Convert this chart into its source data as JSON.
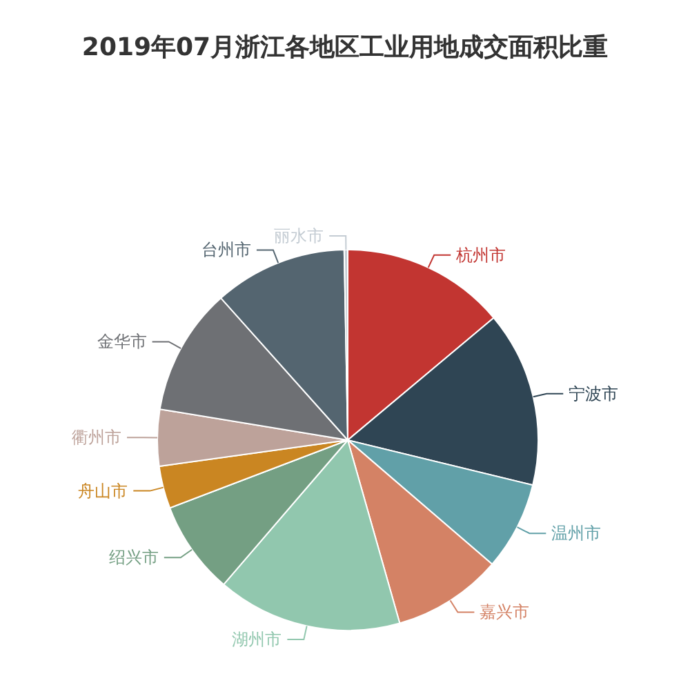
{
  "chart_data": {
    "type": "pie",
    "title": "2019年07月浙江各地区工业用地成交面积比重",
    "categories": [
      "杭州市",
      "宁波市",
      "温州市",
      "嘉兴市",
      "湖州市",
      "绍兴市",
      "舟山市",
      "衢州市",
      "金华市",
      "台州市",
      "丽水市"
    ],
    "values": [
      13.9,
      14.9,
      7.5,
      9.3,
      15.7,
      7.9,
      3.6,
      4.8,
      10.8,
      11.3,
      0.3
    ],
    "colors": [
      "#c23531",
      "#2f4554",
      "#61a0a8",
      "#d48265",
      "#91c7ae",
      "#749f83",
      "#ca8622",
      "#bda29a",
      "#6e7074",
      "#546570",
      "#c4ccd3"
    ]
  }
}
